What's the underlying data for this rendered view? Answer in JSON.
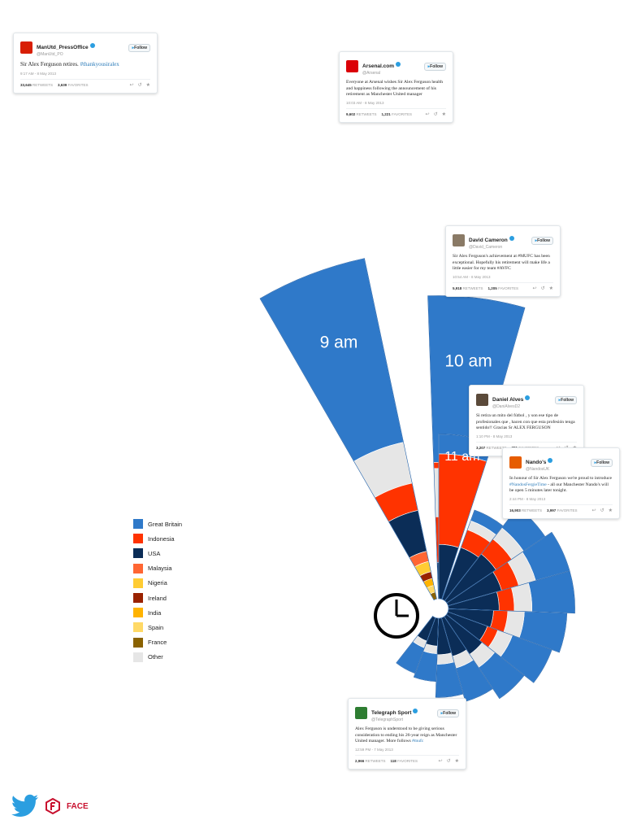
{
  "chart_data": {
    "type": "radial-bar",
    "title": "",
    "hours": [
      {
        "label": "9 am",
        "value": 440
      },
      {
        "label": "10 am",
        "value": 383
      },
      {
        "label": "11 am",
        "value": 208
      },
      {
        "label": "",
        "value": 120
      },
      {
        "label": "",
        "value": 150
      },
      {
        "label": "",
        "value": 160
      },
      {
        "label": "",
        "value": 160
      },
      {
        "label": "",
        "value": 150
      },
      {
        "label": "",
        "value": 140
      },
      {
        "label": "",
        "value": 125
      },
      {
        "label": "",
        "value": 110
      },
      {
        "label": "",
        "value": 100
      },
      {
        "label": "",
        "value": 80
      },
      {
        "label": "",
        "value": 75
      }
    ],
    "series_colors": {
      "Great Britain": "#2f79c9",
      "Indonesia": "#ff3300",
      "USA": "#0b2d57",
      "Malaysia": "#ff6633",
      "Nigeria": "#ffcc33",
      "Ireland": "#992200",
      "India": "#ffb300",
      "Spain": "#ffd966",
      "France": "#8a6200",
      "Other": "#e6e6e6"
    }
  },
  "legend": [
    {
      "label": "Great Britain",
      "color": "#2f79c9"
    },
    {
      "label": "Indonesia",
      "color": "#ff3300"
    },
    {
      "label": "USA",
      "color": "#0b2d57"
    },
    {
      "label": "Malaysia",
      "color": "#ff6633"
    },
    {
      "label": "Nigeria",
      "color": "#ffcc33"
    },
    {
      "label": "Ireland",
      "color": "#992200"
    },
    {
      "label": "India",
      "color": "#ffb300"
    },
    {
      "label": "Spain",
      "color": "#ffd966"
    },
    {
      "label": "France",
      "color": "#8a6200"
    },
    {
      "label": "Other",
      "color": "#e6e6e6"
    }
  ],
  "tweets": {
    "manutd": {
      "name": "ManUtd_PressOffice",
      "handle": "@ManUtd_PO",
      "follow": "Follow",
      "text": "Sir Alex Ferguson retires. ",
      "hashtag": "#thankyousiralex",
      "time": "9:17 AM - 8 May 2013",
      "retweets": "33,645",
      "favorites": "3,639",
      "avatar_color": "#d81e05"
    },
    "arsenal": {
      "name": "Arsenal.com",
      "handle": "@Arsenal",
      "follow": "Follow",
      "text": "Everyone at Arsenal wishes Sir Alex Ferguson health and happiness following the announcement of his retirement as Manchester United manager",
      "hashtag": "",
      "time": "10:03 AM - 8 May 2013",
      "retweets": "9,602",
      "favorites": "1,221",
      "avatar_color": "#db0007"
    },
    "cameron": {
      "name": "David Cameron",
      "handle": "@David_Cameron",
      "follow": "Follow",
      "text": "Sir Alex Ferguson's achievement at #MUFC has been exceptional. Hopefully his retirement will make life a little easier for my team #AVFC",
      "hashtag": "",
      "time": "10:54 AM - 8 May 2013",
      "retweets": "5,918",
      "favorites": "1,205",
      "avatar_color": "#8a7a66"
    },
    "alves": {
      "name": "Daniel Alves",
      "handle": "@DaniAlvesD2",
      "follow": "Follow",
      "text": "Si retira un mito del fútbol , y son ese tipo de profesionales que , hacen con que esta profesión tenga sentido!! Gracias Sr ALEX FERGUSON",
      "hashtag": "",
      "time": "1:10 PM - 8 May 2013",
      "retweets": "3,207",
      "favorites": "391",
      "avatar_color": "#5b4a3a"
    },
    "nandos": {
      "name": "Nando's",
      "handle": "@NandosUK",
      "follow": "Follow",
      "text": "In honour of Sir Alex Ferguson we're proud to introduce ",
      "hashtag": "#NandosFergieTime",
      "text_after": " - all our Manchester Nando's will be open 5 minutes later tonight.",
      "time": "2:44 PM - 8 May 2013",
      "retweets": "16,903",
      "favorites": "3,997",
      "avatar_color": "#e65c00"
    },
    "telegraph": {
      "name": "Telegraph Sport",
      "handle": "@TelegraphSport",
      "follow": "Follow",
      "text": "Alex Ferguson is understood to be giving serious consideration to ending his 26-year reign as Manchester United manager. More follows ",
      "hashtag": "#mufc",
      "time": "12:59 PM - 7 May 2013",
      "retweets": "2,966",
      "favorites": "118",
      "avatar_color": "#2e7d32"
    }
  },
  "footer": {
    "brand": "FACE"
  },
  "labels": {
    "retweets": "RETWEETS",
    "favorites": "FAVORITES"
  },
  "icons": {
    "clock": "clock-icon",
    "twitter": "twitter-bird-icon",
    "face": "face-logo"
  }
}
